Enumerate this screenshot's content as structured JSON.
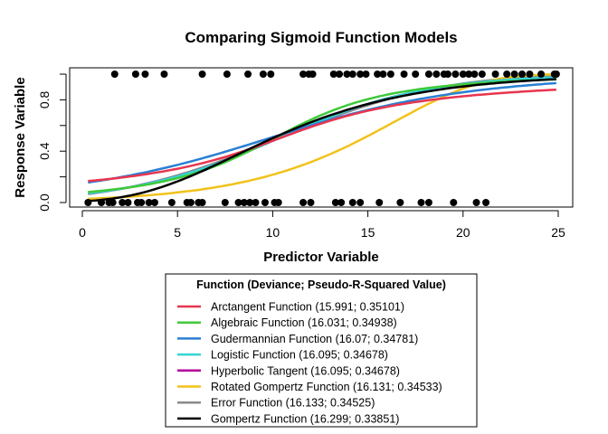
{
  "chart_data": {
    "type": "scatter",
    "title": "Comparing Sigmoid Function Models",
    "xlabel": "Predictor Variable",
    "ylabel": "Response Variable",
    "xlim": [
      0,
      25
    ],
    "ylim": [
      0,
      1
    ],
    "x_ticks": [
      "0",
      "5",
      "10",
      "15",
      "20",
      "25"
    ],
    "y_ticks": [
      "0.0",
      "0.4",
      "0.8"
    ],
    "grid": false,
    "legend": {
      "title": "Function (Deviance; Pseudo-R-Squared Value)",
      "placement": "bottom"
    },
    "points": {
      "y1_x": [
        1.7,
        2.8,
        3.3,
        4.3,
        6.3,
        7.6,
        8.7,
        9.5,
        9.9,
        11.6,
        11.9,
        12.1,
        13.2,
        13.5,
        13.9,
        14.2,
        14.6,
        14.9,
        15.5,
        15.8,
        16.2,
        16.9,
        17.5,
        18.2,
        18.6,
        19.0,
        19.2,
        19.6,
        20.0,
        20.3,
        20.6,
        21.0,
        21.7,
        22.3,
        22.7,
        23.1,
        23.5,
        24.1,
        24.8,
        24.9
      ],
      "y0_x": [
        0.3,
        1.0,
        1.4,
        1.6,
        2.1,
        2.4,
        2.9,
        3.1,
        3.5,
        3.8,
        4.7,
        5.5,
        5.7,
        6.1,
        6.3,
        7.5,
        8.2,
        8.5,
        8.8,
        9.1,
        9.6,
        10.1,
        10.3,
        11.6,
        12.0,
        13.3,
        13.6,
        14.2,
        14.6,
        15.6,
        16.7,
        17.8,
        18.2,
        19.5,
        20.7,
        21.2
      ]
    },
    "series": [
      {
        "name": "Arctangent Function (15.991; 0.35101)",
        "color": "#e8354f",
        "b0": -1.78,
        "b1": 0.172
      },
      {
        "name": "Algebraic Function (16.031; 0.34938)",
        "color": "#3fc93a",
        "b0": -1.57,
        "b1": 0.156
      },
      {
        "name": "Gudermannian Function (16.07; 0.34781)",
        "color": "#2a7fd4",
        "b0": -1.43,
        "b1": 0.146
      },
      {
        "name": "Logistic Function (16.095; 0.34678)",
        "color": "#34d6d3",
        "b0": -2.64,
        "b1": 0.256
      },
      {
        "name": "Hyperbolic Tangent (16.095; 0.34678)",
        "color": "#b5009b",
        "b0": -1.32,
        "b1": 0.128
      },
      {
        "name": "Rotated Gompertz Function (16.131; 0.34533)",
        "color": "#f1c21b",
        "b0": -3.6,
        "b1": 0.219
      },
      {
        "name": "Error Function (16.133; 0.34525)",
        "color": "#8a8a8a",
        "b0": -1.55,
        "b1": 0.15
      },
      {
        "name": "Gompertz Function (16.299; 0.33851)",
        "color": "#000000",
        "b0": -1.55,
        "b1": 0.192
      }
    ]
  }
}
